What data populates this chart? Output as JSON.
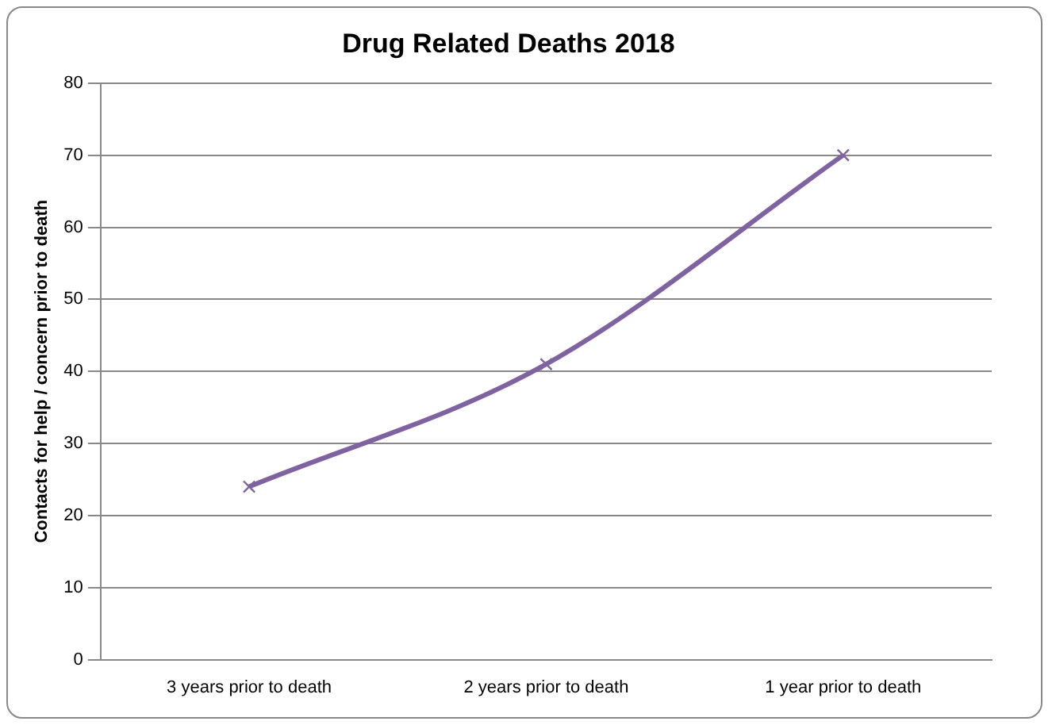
{
  "chart_data": {
    "type": "line",
    "title": "Drug Related Deaths 2018",
    "ylabel": "Contacts for help / concern prior to death",
    "categories": [
      "3 years prior to death",
      "2 years prior to death",
      "1 year prior to death"
    ],
    "series": [
      {
        "color": "#7f63a1",
        "values": [
          24,
          41,
          70
        ]
      }
    ],
    "ylim": [
      0,
      80
    ],
    "yticks": [
      0,
      10,
      20,
      30,
      40,
      50,
      60,
      70,
      80
    ],
    "grid": "y",
    "legend": false,
    "marker": "cross",
    "line_style": "solid"
  }
}
